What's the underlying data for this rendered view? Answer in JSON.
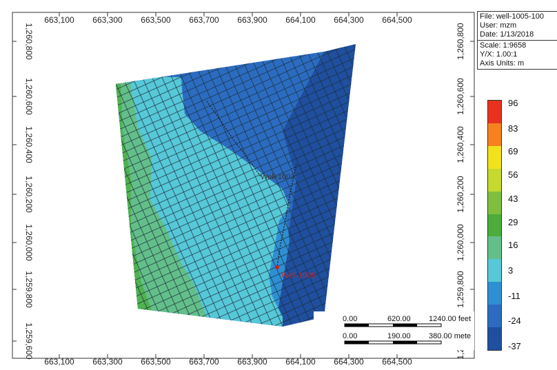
{
  "info": {
    "file": "File: well-1005-100",
    "user": "User:  mzm",
    "date": "Date: 1/13/2018",
    "scale": "Scale: 1:9658",
    "yx": "Y/X: 1.00:1",
    "units": "Axis Units: m"
  },
  "axes": {
    "x_ticks": [
      "663,100",
      "663,300",
      "663,500",
      "663,700",
      "663,900",
      "664,100",
      "664,300",
      "664,500"
    ],
    "y_ticks": [
      "1,260,800",
      "1,260,600",
      "1,260,400",
      "1,260,200",
      "1,260,000",
      "1,259,800",
      "1,259,600"
    ]
  },
  "wells": [
    {
      "name": "Well-1003",
      "color": "#333333"
    },
    {
      "name": "Well-1005",
      "color": "#cc2222"
    }
  ],
  "scale_bar": {
    "feet": [
      "0.00",
      "620.00",
      "1240.00 feet"
    ],
    "meters": [
      "0.00",
      "190.00",
      "380.00 mete"
    ]
  },
  "legend": {
    "labels": [
      "96",
      "83",
      "69",
      "56",
      "43",
      "29",
      "16",
      "3",
      "-11",
      "-24",
      "-37"
    ],
    "colors": [
      "#e8321e",
      "#f5821f",
      "#f2e21b",
      "#c5d92e",
      "#7fbf3f",
      "#4aad3c",
      "#63bf8a",
      "#56c8d8",
      "#2f8fd3",
      "#2b6cc0",
      "#1f4f9e"
    ]
  }
}
